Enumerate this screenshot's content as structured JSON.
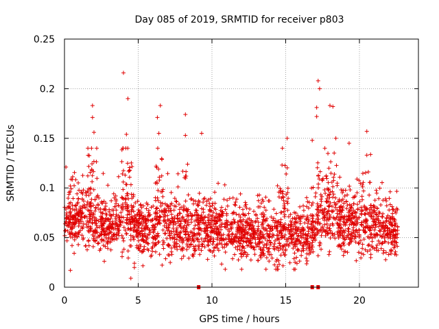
{
  "chart_data": {
    "type": "scatter",
    "title": "Day 085 of 2019, SRMTID for receiver p803",
    "xlabel": "GPS time / hours",
    "ylabel": "SRMTID / TECUs",
    "xlim": [
      0,
      24
    ],
    "ylim": [
      0,
      0.25
    ],
    "x_ticks": [
      0,
      5,
      10,
      15,
      20
    ],
    "x_tick_labels": [
      "0",
      "5",
      "10",
      "15",
      "20"
    ],
    "y_ticks": [
      0,
      0.05,
      0.1,
      0.15,
      0.2,
      0.25
    ],
    "y_tick_labels": [
      "0",
      "0.05",
      "0.1",
      "0.15",
      "0.2",
      "0.25"
    ],
    "grid": true,
    "marker": "+",
    "color": "#e00000",
    "time_range_hours": [
      0,
      22.6
    ],
    "baseline_level_by_hour": [
      {
        "x": 0,
        "level": 0.068
      },
      {
        "x": 1,
        "level": 0.07
      },
      {
        "x": 2,
        "level": 0.066
      },
      {
        "x": 3,
        "level": 0.062
      },
      {
        "x": 4,
        "level": 0.068
      },
      {
        "x": 5,
        "level": 0.062
      },
      {
        "x": 6,
        "level": 0.058
      },
      {
        "x": 7,
        "level": 0.062
      },
      {
        "x": 8,
        "level": 0.056
      },
      {
        "x": 9,
        "level": 0.058
      },
      {
        "x": 10,
        "level": 0.058
      },
      {
        "x": 11,
        "level": 0.056
      },
      {
        "x": 12,
        "level": 0.052
      },
      {
        "x": 13,
        "level": 0.05
      },
      {
        "x": 14,
        "level": 0.052
      },
      {
        "x": 15,
        "level": 0.056
      },
      {
        "x": 16,
        "level": 0.05
      },
      {
        "x": 17,
        "level": 0.06
      },
      {
        "x": 18,
        "level": 0.066
      },
      {
        "x": 19,
        "level": 0.064
      },
      {
        "x": 20,
        "level": 0.06
      },
      {
        "x": 21,
        "level": 0.058
      },
      {
        "x": 22,
        "level": 0.058
      }
    ],
    "notable_points": [
      {
        "x": 0.1,
        "y": 0.121
      },
      {
        "x": 0.4,
        "y": 0.017
      },
      {
        "x": 1.9,
        "y": 0.183
      },
      {
        "x": 1.9,
        "y": 0.171
      },
      {
        "x": 2.0,
        "y": 0.156
      },
      {
        "x": 4.0,
        "y": 0.216
      },
      {
        "x": 4.3,
        "y": 0.19
      },
      {
        "x": 4.5,
        "y": 0.009
      },
      {
        "x": 4.2,
        "y": 0.154
      },
      {
        "x": 6.3,
        "y": 0.171
      },
      {
        "x": 6.5,
        "y": 0.183
      },
      {
        "x": 6.4,
        "y": 0.155
      },
      {
        "x": 8.2,
        "y": 0.174
      },
      {
        "x": 8.2,
        "y": 0.153
      },
      {
        "x": 9.3,
        "y": 0.155
      },
      {
        "x": 15.1,
        "y": 0.15
      },
      {
        "x": 16.8,
        "y": 0.148
      },
      {
        "x": 17.2,
        "y": 0.208
      },
      {
        "x": 17.3,
        "y": 0.2
      },
      {
        "x": 17.1,
        "y": 0.181
      },
      {
        "x": 17.1,
        "y": 0.172
      },
      {
        "x": 18.0,
        "y": 0.183
      },
      {
        "x": 18.2,
        "y": 0.182
      },
      {
        "x": 18.4,
        "y": 0.15
      },
      {
        "x": 19.3,
        "y": 0.145
      },
      {
        "x": 20.5,
        "y": 0.157
      },
      {
        "x": 20.5,
        "y": 0.133
      }
    ],
    "burst_intervals": [
      {
        "start": 1.5,
        "end": 2.3,
        "peak": 0.11
      },
      {
        "start": 3.8,
        "end": 4.6,
        "peak": 0.12
      },
      {
        "start": 6.2,
        "end": 6.8,
        "peak": 0.1
      },
      {
        "start": 8.0,
        "end": 8.4,
        "peak": 0.09
      },
      {
        "start": 14.5,
        "end": 15.2,
        "peak": 0.08
      },
      {
        "start": 17.0,
        "end": 18.5,
        "peak": 0.09
      },
      {
        "start": 19.8,
        "end": 20.8,
        "peak": 0.06
      }
    ],
    "zero_points": [
      {
        "x": 9.1,
        "y": 0
      },
      {
        "x": 16.8,
        "y": 0
      },
      {
        "x": 17.2,
        "y": 0
      }
    ],
    "approx_point_count": 2600
  }
}
